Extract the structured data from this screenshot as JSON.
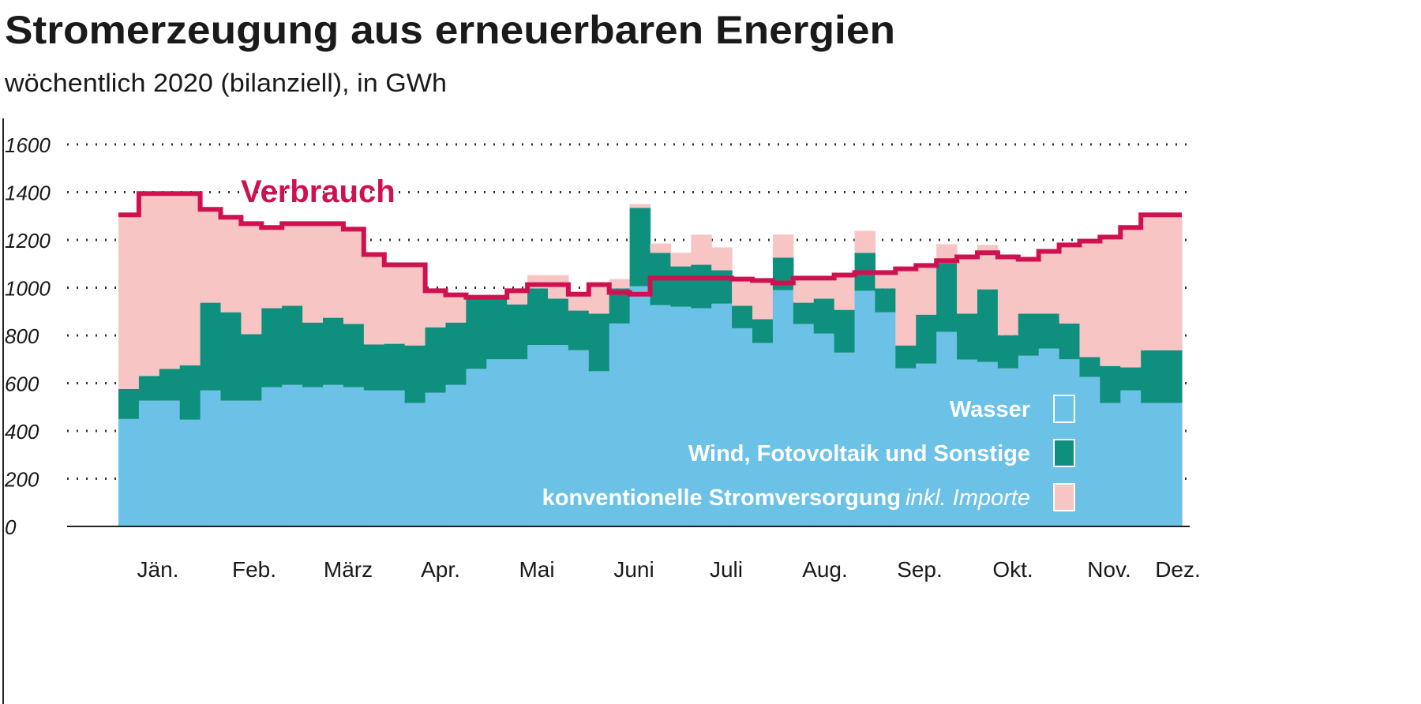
{
  "chart_data": {
    "type": "bar",
    "stacked": true,
    "title": "Stromerzeugung aus erneuerbaren Energien",
    "subtitle": "wöchentlich 2020 (bilanziell), in GWh",
    "xlabel": "",
    "ylabel": "",
    "ylim": [
      0,
      1600
    ],
    "yticks": [
      "0",
      "200",
      "400",
      "600",
      "800",
      "1000",
      "1200",
      "1400",
      "1600"
    ],
    "grid": true,
    "month_labels": [
      "Jän.",
      "Feb.",
      "März",
      "Apr.",
      "Mai",
      "Juni",
      "Juli",
      "Aug.",
      "Sep.",
      "Okt.",
      "Nov.",
      "Dez."
    ],
    "weeks": 52,
    "legend_position": "bottom-right",
    "series": [
      {
        "name": "Wasser",
        "color": "#6cc1e6",
        "values": [
          450,
          527,
          527,
          447,
          570,
          527,
          527,
          583,
          593,
          583,
          593,
          583,
          570,
          570,
          517,
          560,
          593,
          660,
          700,
          700,
          760,
          760,
          738,
          650,
          850,
          1006,
          927,
          920,
          914,
          933,
          830,
          768,
          990,
          848,
          808,
          728,
          987,
          897,
          662,
          682,
          815,
          699,
          689,
          662,
          715,
          745,
          700,
          626,
          517,
          570,
          517,
          517
        ]
      },
      {
        "name": "Wind, Fotovoltaik und Sonstige",
        "color": "#0f8f7d",
        "values": [
          126,
          103,
          133,
          228,
          367,
          370,
          278,
          331,
          331,
          271,
          281,
          265,
          192,
          195,
          241,
          274,
          261,
          294,
          254,
          230,
          237,
          194,
          166,
          241,
          147,
          328,
          219,
          169,
          182,
          140,
          94,
          100,
          136,
          89,
          146,
          179,
          159,
          100,
          96,
          205,
          288,
          192,
          304,
          139,
          176,
          146,
          150,
          83,
          155,
          96,
          221,
          221
        ]
      },
      {
        "name": "konventionelle Stromversorgung",
        "name_suffix": "inkl. Importe",
        "color": "#f7c5c4",
        "values": [
          729,
          764,
          734,
          719,
          391,
          398,
          463,
          338,
          344,
          414,
          394,
          397,
          377,
          331,
          338,
          153,
          116,
          6,
          6,
          57,
          56,
          99,
          69,
          129,
          39,
          16,
          39,
          57,
          126,
          96,
          112,
          162,
          96,
          103,
          86,
          146,
          92,
          66,
          321,
          206,
          79,
          238,
          186,
          328,
          228,
          261,
          329,
          486,
          540,
          586,
          567,
          567
        ]
      }
    ],
    "line": {
      "name": "Verbrauch",
      "color": "#cf1150",
      "values": [
        1305,
        1394,
        1394,
        1394,
        1328,
        1295,
        1268,
        1252,
        1268,
        1268,
        1268,
        1245,
        1139,
        1096,
        1096,
        987,
        970,
        960,
        960,
        987,
        1013,
        1013,
        973,
        1013,
        980,
        973,
        1040,
        1040,
        1040,
        1040,
        1036,
        1030,
        1020,
        1040,
        1040,
        1053,
        1063,
        1063,
        1079,
        1093,
        1113,
        1129,
        1146,
        1129,
        1119,
        1152,
        1179,
        1195,
        1212,
        1252,
        1305,
        1305
      ]
    }
  }
}
